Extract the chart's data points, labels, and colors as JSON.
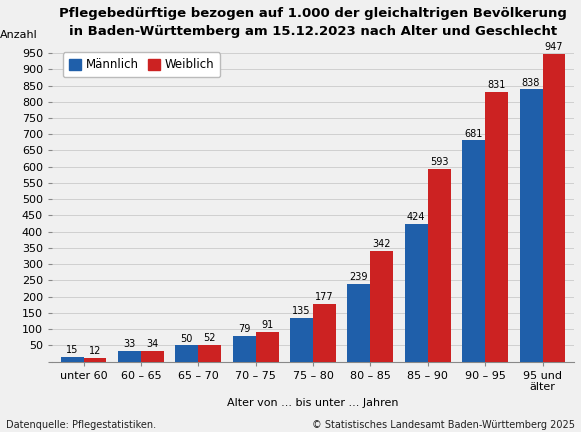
{
  "title": "Pflegebedürftige bezogen auf 1.000 der gleichaltrigen Bevölkerung\nin Baden-Württemberg am 15.12.2023 nach Alter und Geschlecht",
  "ylabel": "Anzahl",
  "xlabel": "Alter von ... bis unter ... Jahren",
  "categories": [
    "unter 60",
    "60 – 65",
    "65 – 70",
    "70 – 75",
    "75 – 80",
    "80 – 85",
    "85 – 90",
    "90 – 95",
    "95 und\nälter"
  ],
  "maennlich": [
    15,
    33,
    50,
    79,
    135,
    239,
    424,
    681,
    838
  ],
  "weiblich": [
    12,
    34,
    52,
    91,
    177,
    342,
    593,
    831,
    947
  ],
  "color_maennlich": "#1f5faa",
  "color_weiblich": "#cc2222",
  "ylim": [
    0,
    980
  ],
  "yticks": [
    0,
    50,
    100,
    150,
    200,
    250,
    300,
    350,
    400,
    450,
    500,
    550,
    600,
    650,
    700,
    750,
    800,
    850,
    900,
    950
  ],
  "legend_maennlich": "Männlich",
  "legend_weiblich": "Weiblich",
  "source_left": "Datenquelle: Pflegestatistiken.",
  "source_right": "© Statistisches Landesamt Baden-Württemberg 2025",
  "background_color": "#f0f0f0",
  "grid_color": "#d0d0d0",
  "title_fontsize": 9.5,
  "label_fontsize": 8,
  "tick_fontsize": 8,
  "bar_label_fontsize": 7,
  "legend_fontsize": 8.5,
  "source_fontsize": 7
}
